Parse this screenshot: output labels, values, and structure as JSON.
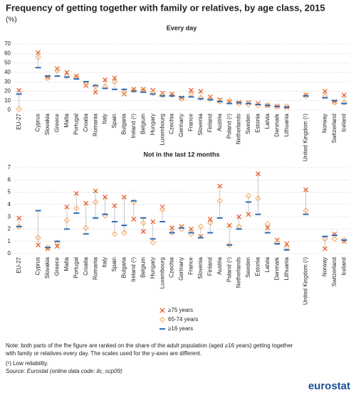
{
  "title": "Frequency of getting together with family or relatives, by age class, 2015",
  "unit": "(%)",
  "notes": [
    "Note: both parts of the fhe figure are ranked on the share of the adult population (aged ≥16 years) getting together",
    "with family or relatives every day. The scales used for the y-axes are different."
  ],
  "reliability": "(¹) Low reliability.",
  "source": "Source: Eurostat (online data code: ilc_scp09)",
  "logo": "eurostat",
  "chart_data": [
    {
      "type": "dot",
      "subtitle": "Every day",
      "categories": [
        "EU-27",
        null,
        "Cyprus",
        "Slovakia",
        "Greece",
        "Malta",
        "Portugal",
        "Croatia",
        "Romania",
        "Italy",
        "Spain",
        "Bulgaria",
        "Ireland (¹)",
        "Belgium",
        "Hungary",
        "Luxembourg",
        "Czechia",
        "Germany",
        "France",
        "Slovenia",
        "Finland",
        "Austria",
        "Poland (¹)",
        "Netherlands",
        "Sweden",
        "Estonia",
        "Latvia",
        "Denmark",
        "Lithuania",
        null,
        "United Kingdom (¹)",
        null,
        "Norway",
        "Switzerland",
        "Iceland"
      ],
      "series": [
        {
          "name": "≥75 years",
          "color": "#e8602c",
          "marker": "x",
          "values": [
            21,
            null,
            61,
            35,
            44,
            40,
            36,
            26,
            19,
            32,
            34,
            17,
            22,
            22,
            21,
            18,
            17,
            13,
            21,
            20,
            14,
            11,
            9,
            8,
            8,
            7,
            5,
            4,
            3,
            null,
            16,
            null,
            20,
            9,
            16
          ]
        },
        {
          "name": "65-74 years",
          "color": "#f4a660",
          "marker": "diamond",
          "values": [
            1,
            null,
            56,
            34,
            42,
            36,
            35,
            28,
            25,
            25,
            30,
            19,
            21,
            21,
            18,
            16,
            16,
            12,
            17,
            13,
            12,
            9,
            10,
            7,
            6,
            5,
            5,
            4,
            4,
            null,
            15,
            null,
            15,
            8,
            8
          ]
        },
        {
          "name": "≥16 years",
          "color": "#2c6db3",
          "marker": "dash",
          "values": [
            17,
            null,
            45,
            36,
            36,
            35,
            33,
            30,
            26,
            23,
            22,
            22,
            20,
            19,
            17,
            15,
            15,
            14,
            14,
            12,
            11,
            9,
            7,
            8,
            7,
            6,
            5,
            4,
            3,
            null,
            15,
            null,
            13,
            10,
            7
          ]
        }
      ],
      "ylim": [
        0,
        70
      ],
      "yticks": [
        0,
        10,
        20,
        30,
        40,
        50,
        60,
        70
      ],
      "grid": true
    },
    {
      "type": "dot",
      "subtitle": "Not in the last 12 months",
      "categories": [
        "EU-27",
        null,
        "Cyprus",
        "Slovakia",
        "Greece",
        "Malta",
        "Portugal",
        "Croatia",
        "Romania",
        "Italy",
        "Spain",
        "Bulgaria",
        "Ireland (¹)",
        "Belgium",
        "Hungary",
        "Luxembourg",
        "Czechia",
        "Germany",
        "France",
        "Slovenia",
        "Finland",
        "Austria",
        "Poland (¹)",
        "Netherlands",
        "Sweden",
        "Estonia",
        "Latvia",
        "Denmark",
        "Lithuania",
        null,
        "United Kingdom (¹)",
        null,
        "Norway",
        "Switzerland",
        "Iceland"
      ],
      "series": [
        {
          "name": "≥75 years",
          "color": "#e8602c",
          "marker": "x",
          "values": [
            2.9,
            null,
            0.7,
            0.4,
            0.6,
            3.8,
            4.9,
            4.1,
            5.1,
            4.6,
            3.9,
            4.6,
            2.8,
            1.8,
            2.6,
            3.8,
            2.1,
            2.2,
            2.0,
            1.4,
            2.8,
            5.5,
            2.3,
            3.0,
            3.2,
            6.5,
            2.1,
            1.1,
            0.8,
            null,
            5.2,
            null,
            0.4,
            1.6,
            1.0
          ]
        },
        {
          "name": "65-74 years",
          "color": "#f4a660",
          "marker": "diamond",
          "values": [
            2.2,
            null,
            1.3,
            0.5,
            0.9,
            2.7,
            3.7,
            2.1,
            4.2,
            3.1,
            1.6,
            1.7,
            4.2,
            2.5,
            0.9,
            3.6,
            1.7,
            2.0,
            1.6,
            2.2,
            2.5,
            4.3,
            0.7,
            2.2,
            4.7,
            4.5,
            2.4,
            0.9,
            0.5,
            null,
            3.5,
            null,
            1.2,
            1.2,
            1.1
          ]
        },
        {
          "name": "≥16 years",
          "color": "#2c6db3",
          "marker": "dash",
          "values": [
            2.2,
            null,
            3.5,
            0.5,
            1.0,
            2.0,
            3.3,
            1.6,
            2.9,
            3.2,
            2.6,
            2.3,
            4.3,
            2.9,
            1.2,
            2.6,
            1.7,
            2.1,
            1.7,
            1.3,
            1.7,
            2.9,
            0.7,
            2.0,
            4.2,
            3.2,
            1.7,
            0.8,
            0.3,
            null,
            3.2,
            null,
            1.4,
            1.5,
            1.1
          ]
        }
      ],
      "ylim": [
        0,
        7
      ],
      "yticks": [
        0,
        1,
        2,
        3,
        4,
        5,
        6,
        7
      ],
      "grid": true
    }
  ]
}
